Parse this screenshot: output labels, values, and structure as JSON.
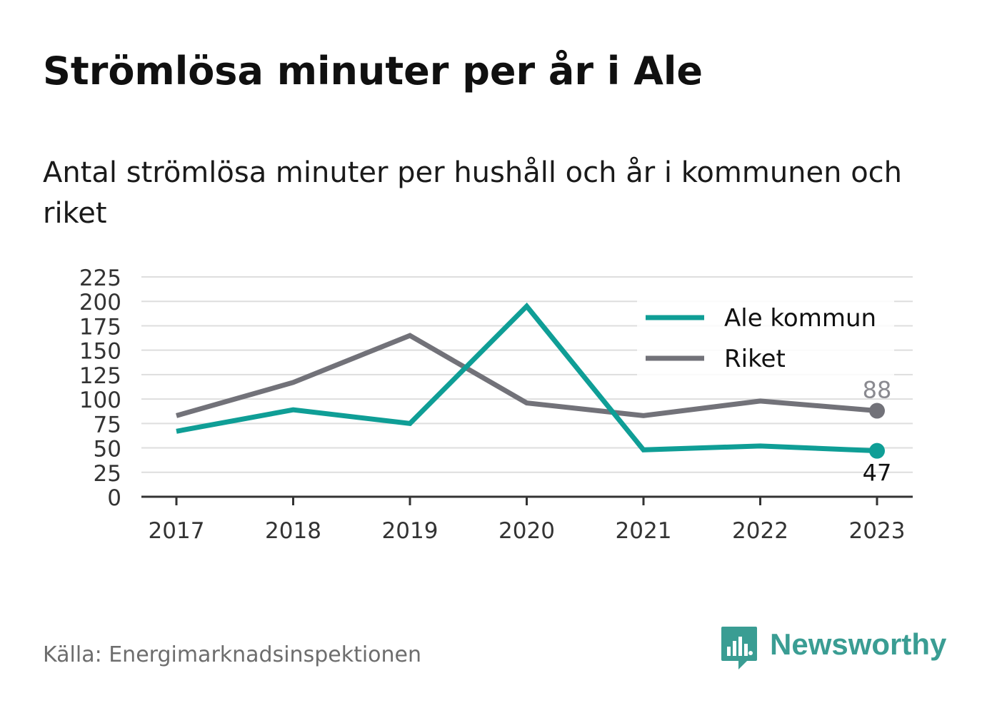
{
  "title": "Strömlösa minuter per år i Ale",
  "subtitle": "Antal strömlösa minuter per hushåll och år i kommunen och riket",
  "source": "Källa: Energimarknadsinspektionen",
  "brand": {
    "name": "Newsworthy",
    "icon": "newsworthy-logo-icon",
    "color": "#3a9d93"
  },
  "chart_data": {
    "type": "line",
    "x": [
      "2017",
      "2018",
      "2019",
      "2020",
      "2021",
      "2022",
      "2023"
    ],
    "ylim": [
      0,
      225
    ],
    "yticks": [
      0,
      25,
      50,
      75,
      100,
      125,
      150,
      175,
      200,
      225
    ],
    "grid": true,
    "legend_position": "top-right",
    "series": [
      {
        "name": "Ale kommun",
        "color": "#0f9e96",
        "values": [
          67,
          89,
          75,
          195,
          48,
          52,
          47
        ],
        "end_label": "47"
      },
      {
        "name": "Riket",
        "color": "#727279",
        "values": [
          83,
          117,
          165,
          96,
          83,
          98,
          88
        ],
        "end_label": "88"
      }
    ]
  }
}
